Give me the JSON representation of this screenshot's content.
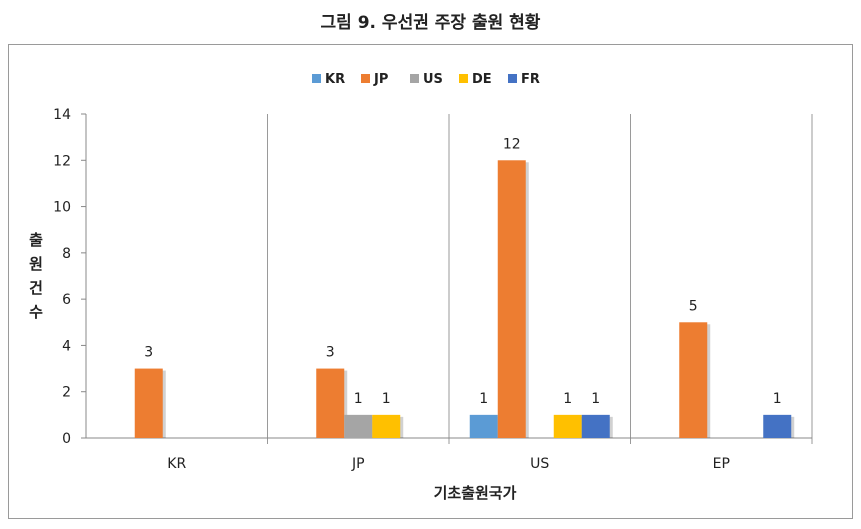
{
  "title": "그림 9. 우선권 주장 출원 현황",
  "chart_data": {
    "type": "bar",
    "categories": [
      "KR",
      "JP",
      "US",
      "EP"
    ],
    "series": [
      {
        "name": "KR",
        "color": "#5B9BD5",
        "values": [
          0,
          0,
          1,
          0
        ]
      },
      {
        "name": "JP",
        "color": "#ED7D31",
        "values": [
          3,
          3,
          12,
          5
        ]
      },
      {
        "name": "US",
        "color": "#A5A5A5",
        "values": [
          0,
          1,
          0,
          0
        ]
      },
      {
        "name": "DE",
        "color": "#FFC000",
        "values": [
          0,
          1,
          1,
          0
        ]
      },
      {
        "name": "FR",
        "color": "#4472C4",
        "values": [
          0,
          0,
          1,
          1
        ]
      }
    ],
    "xlabel": "기초출원국가",
    "ylabel": "출원건수",
    "ylim": [
      0,
      14
    ],
    "yticks": [
      0,
      2,
      4,
      6,
      8,
      10,
      12,
      14
    ],
    "legend": "top"
  }
}
